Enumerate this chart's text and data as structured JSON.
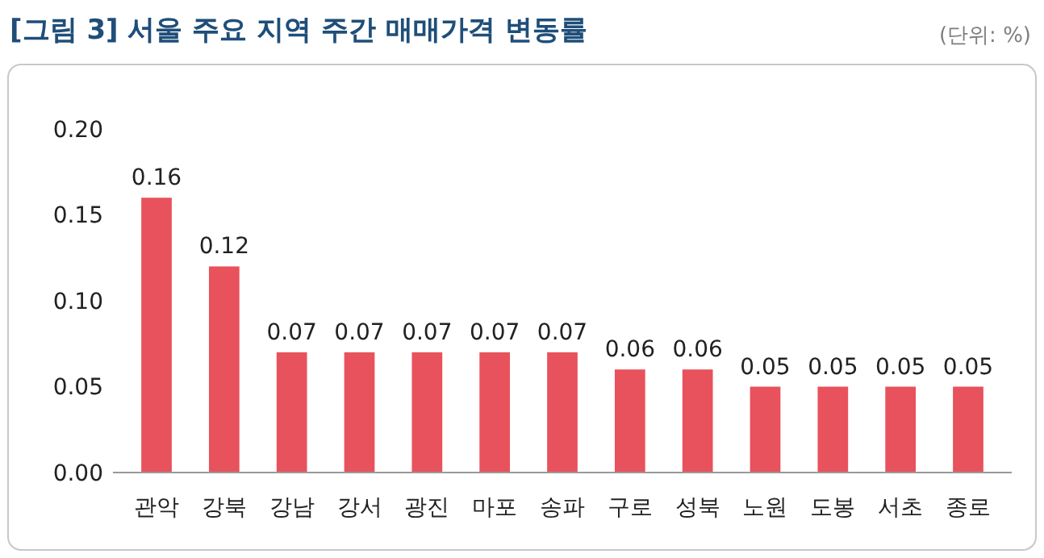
{
  "chart_data": {
    "type": "bar",
    "title": "[그림 3] 서울 주요 지역 주간 매매가격 변동률",
    "annotations": [
      "(단위: %)"
    ],
    "categories": [
      "관악",
      "강북",
      "강남",
      "강서",
      "광진",
      "마포",
      "송파",
      "구로",
      "성북",
      "노원",
      "도봉",
      "서초",
      "종로"
    ],
    "values": [
      0.16,
      0.12,
      0.07,
      0.07,
      0.07,
      0.07,
      0.07,
      0.06,
      0.06,
      0.05,
      0.05,
      0.05,
      0.05
    ],
    "color": "#e8525c",
    "ylim": [
      0,
      0.2
    ],
    "yticks": [
      {
        "value": 0,
        "label": "0.00"
      },
      {
        "value": 0.05,
        "label": "0.05"
      },
      {
        "value": 0.1,
        "label": "0.10"
      },
      {
        "value": 0.15,
        "label": "0.15"
      },
      {
        "value": 0.2,
        "label": "0.20"
      }
    ],
    "data_labels": true
  }
}
